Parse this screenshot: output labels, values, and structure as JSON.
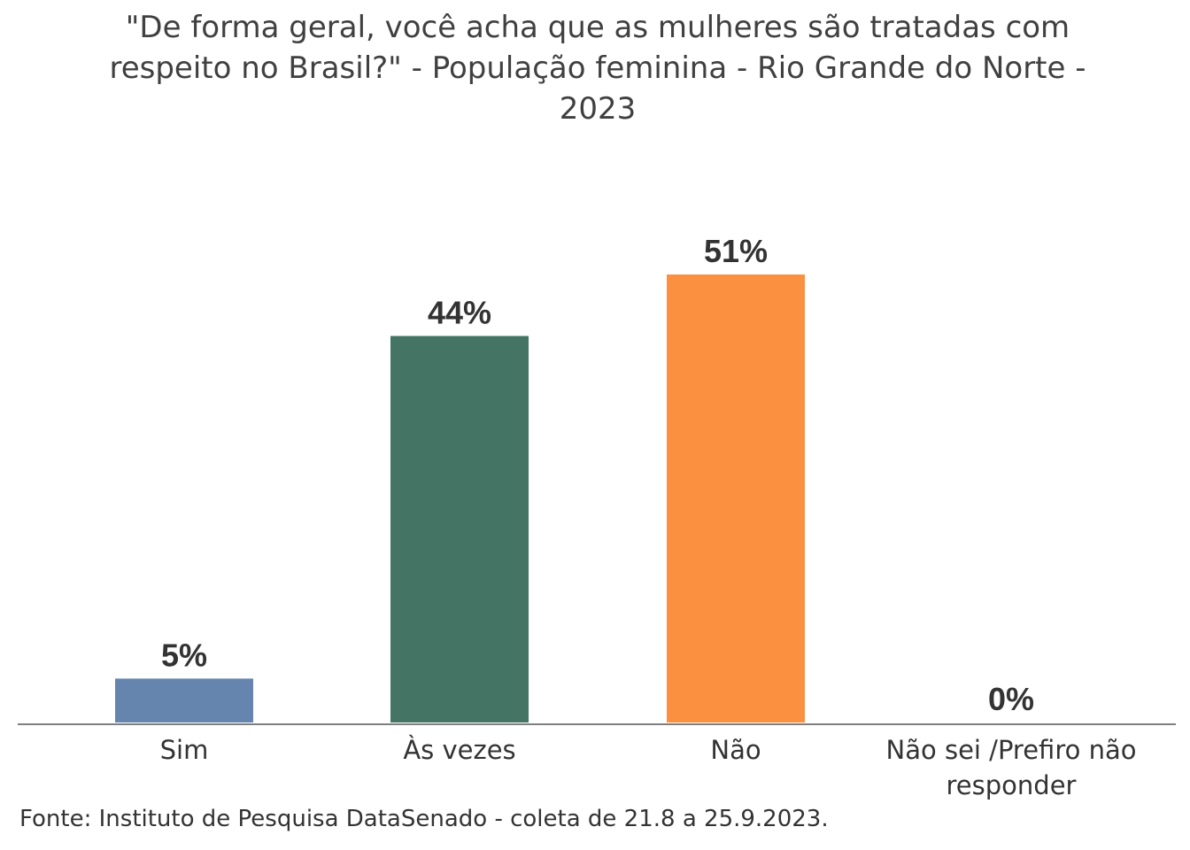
{
  "chart_data": {
    "type": "bar",
    "title": "\"De forma geral, você acha que as mulheres são tratadas com respeito no Brasil?\" - População feminina - Rio Grande do Norte - 2023",
    "categories": [
      "Sim",
      "Às vezes",
      "Não",
      "Não sei /Prefiro não responder"
    ],
    "values": [
      5,
      44,
      51,
      0
    ],
    "value_labels": [
      "5%",
      "44%",
      "51%",
      "0%"
    ],
    "unit": "%",
    "colors": [
      "#6585af",
      "#447464",
      "#fb9140",
      "#a6a6a6"
    ],
    "ylim": [
      0,
      51
    ],
    "grid": false,
    "legend": "none"
  },
  "source": "Fonte: Instituto de Pesquisa DataSenado - coleta de 21.8 a 25.9.2023."
}
